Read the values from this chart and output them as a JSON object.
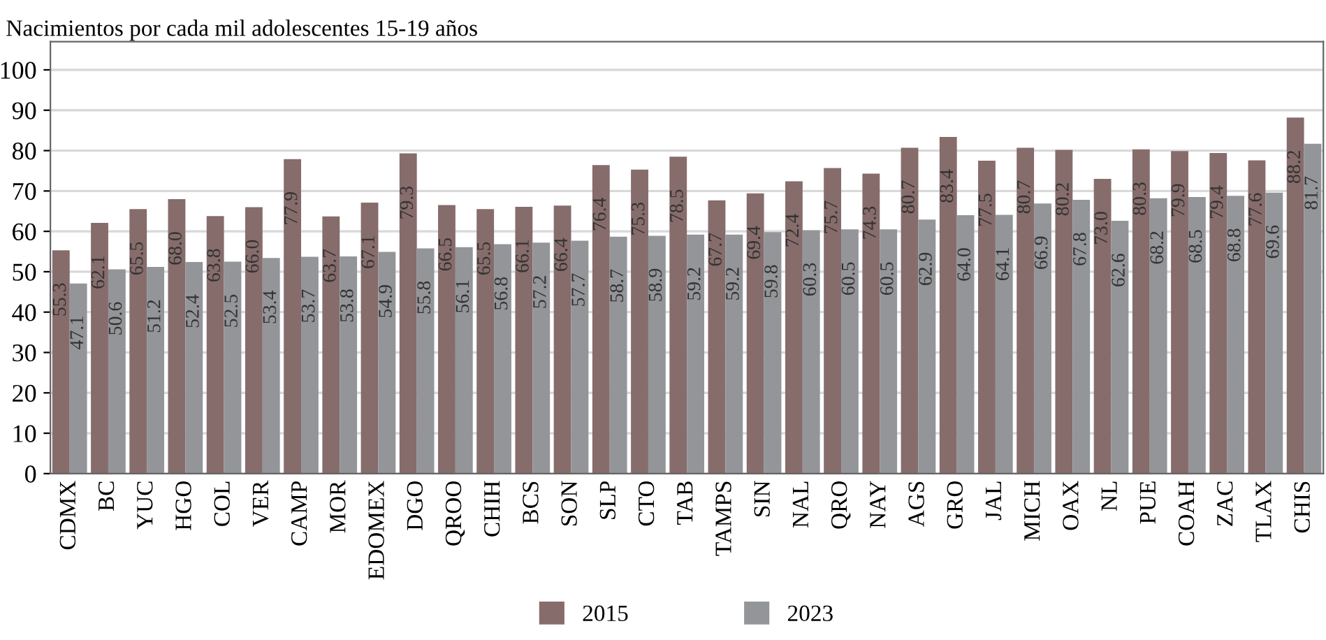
{
  "chart_data": {
    "type": "bar",
    "title": "Nacimientos por cada mil adolescentes 15-19 años",
    "categories": [
      "CDMX",
      "BC",
      "YUC",
      "HGO",
      "COL",
      "VER",
      "CAMP",
      "MOR",
      "EDOMEX",
      "DGO",
      "QROO",
      "CHIH",
      "BCS",
      "SON",
      "SLP",
      "CTO",
      "TAB",
      "TAMPS",
      "SIN",
      "NAL",
      "QRO",
      "NAY",
      "AGS",
      "GRO",
      "JAL",
      "MICH",
      "OAX",
      "NL",
      "PUE",
      "COAH",
      "ZAC",
      "TLAX",
      "CHIS"
    ],
    "series": [
      {
        "name": "2015",
        "color": "#876c6c",
        "values": [
          55.3,
          62.1,
          65.5,
          68.0,
          63.8,
          66.0,
          77.9,
          63.7,
          67.1,
          79.3,
          66.5,
          65.5,
          66.1,
          66.4,
          76.4,
          75.3,
          78.5,
          67.7,
          69.4,
          72.4,
          75.7,
          74.3,
          80.7,
          83.4,
          77.5,
          80.7,
          80.2,
          73.0,
          80.3,
          79.9,
          79.4,
          77.6,
          88.2
        ],
        "value_labels": [
          "55.3",
          "62.1",
          "65.5",
          "68.0",
          "63.8",
          "66.0",
          "77.9",
          "63.7",
          "67.1",
          "79.3",
          "66.5",
          "65.5",
          "66.1",
          "66.4",
          "76.4",
          "75.3",
          "78.5",
          "67.7",
          "69.4",
          "72.4",
          "75.7",
          "74.3",
          "80.7",
          "83.4",
          "77.5",
          "80.7",
          "80.2",
          "73.0",
          "80.3",
          "79.9",
          "79.4",
          "77.6",
          "88.2"
        ]
      },
      {
        "name": "2023",
        "color": "#939599",
        "values": [
          47.1,
          50.6,
          51.2,
          52.4,
          52.5,
          53.4,
          53.7,
          53.8,
          54.9,
          55.8,
          56.1,
          56.8,
          57.2,
          57.7,
          58.7,
          58.9,
          59.2,
          59.2,
          59.8,
          60.3,
          60.5,
          60.5,
          62.9,
          64.0,
          64.1,
          66.9,
          67.8,
          62.6,
          68.2,
          68.5,
          68.8,
          69.6,
          81.7
        ],
        "value_labels": [
          "47.1",
          "50.6",
          "51.2",
          "52.4",
          "52.5",
          "53.4",
          "53.7",
          "53.8",
          "54.9",
          "55.8",
          "56.1",
          "56.8",
          "57.2",
          "57.7",
          "58.7",
          "58.9",
          "59.2",
          "59.2",
          "59.8",
          "60.3",
          "60.5",
          "60.5",
          "62.9",
          "64.0",
          "64.1",
          "66.9",
          "67.8",
          "62.6",
          "68.2",
          "68.5",
          "68.8",
          "69.6",
          "81.7"
        ]
      }
    ],
    "ylim": [
      0,
      107
    ],
    "yticks": [
      0,
      10,
      20,
      30,
      40,
      50,
      60,
      70,
      80,
      90,
      100
    ],
    "grid": "y",
    "legend": "bottom"
  }
}
